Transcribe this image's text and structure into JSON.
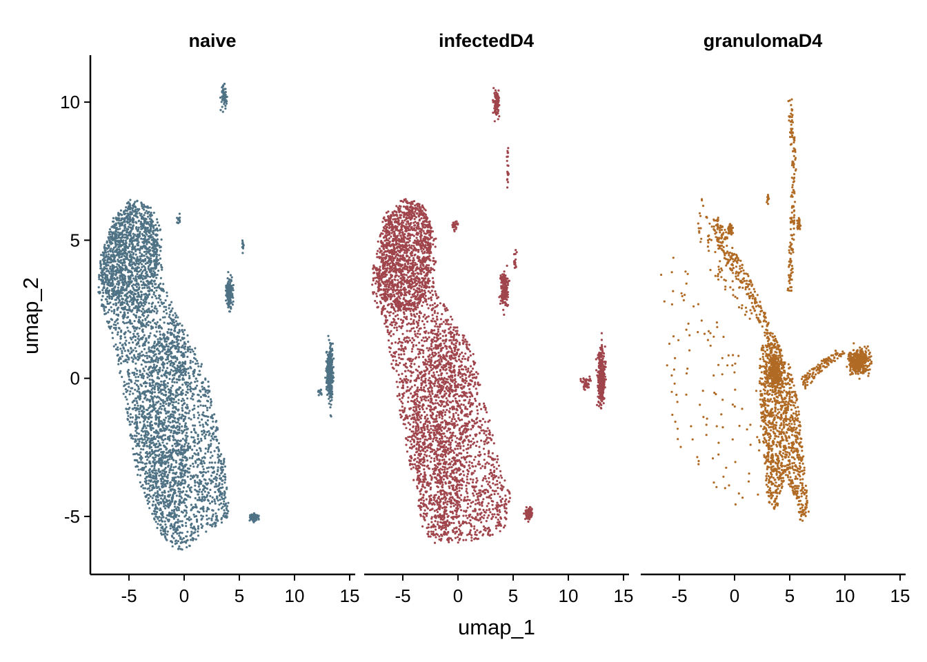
{
  "chart_data": {
    "type": "scatter",
    "xlabel": "umap_1",
    "ylabel": "umap_2",
    "xlim": [
      -8.5,
      15.5
    ],
    "ylim": [
      -7.1,
      11.7
    ],
    "x_ticks": [
      "-5",
      "0",
      "5",
      "10",
      "15"
    ],
    "y_ticks": [
      "-5",
      "0",
      "5",
      "10"
    ],
    "grid": false,
    "legend": "none",
    "panels": [
      {
        "title": "naive",
        "color": "#4f7285",
        "clusters": [
          {
            "shape": "poly",
            "poly": [
              [
                -7.7,
                4.3
              ],
              [
                -6.5,
                5.8
              ],
              [
                -4.8,
                6.5
              ],
              [
                -3.2,
                6.3
              ],
              [
                -2.1,
                5.6
              ],
              [
                -1.9,
                3.6
              ],
              [
                -0.7,
                2.3
              ],
              [
                0.8,
                1.3
              ],
              [
                2.2,
                -0.1
              ],
              [
                3.3,
                -2.3
              ],
              [
                4.1,
                -4.6
              ],
              [
                3.8,
                -5.2
              ],
              [
                1.8,
                -5.6
              ],
              [
                0.2,
                -6.2
              ],
              [
                -1.0,
                -6.2
              ],
              [
                -2.4,
                -5.5
              ],
              [
                -4.3,
                -3.5
              ],
              [
                -5.7,
                -0.2
              ],
              [
                -6.6,
                1.6
              ],
              [
                -7.8,
                3.0
              ]
            ],
            "n": 2600
          },
          {
            "shape": "poly",
            "poly": [
              [
                -7.6,
                4.0
              ],
              [
                -6.6,
                5.6
              ],
              [
                -4.8,
                6.3
              ],
              [
                -3.2,
                6.2
              ],
              [
                -2.3,
                5.3
              ],
              [
                -2.6,
                3.4
              ],
              [
                -4.0,
                2.4
              ],
              [
                -5.6,
                2.5
              ],
              [
                -7.2,
                3.0
              ]
            ],
            "n": 900
          },
          {
            "shape": "poly",
            "poly": [
              [
                -4.2,
                -0.6
              ],
              [
                -2.6,
                1.4
              ],
              [
                -0.8,
                1.9
              ],
              [
                0.4,
                0.4
              ],
              [
                0.2,
                -3.2
              ],
              [
                -0.6,
                -5.6
              ],
              [
                -2.0,
                -5.8
              ],
              [
                -3.4,
                -4.5
              ],
              [
                -4.4,
                -2.4
              ]
            ],
            "n": 700
          },
          {
            "shape": "ellipse",
            "cx": 3.3,
            "cy": -3.5,
            "rx": 0.9,
            "ry": 1.3,
            "n": 40
          },
          {
            "shape": "ellipse",
            "cx": 6.3,
            "cy": -5.05,
            "rx": 0.55,
            "ry": 0.22,
            "n": 90
          },
          {
            "shape": "ellipse",
            "cx": 3.6,
            "cy": 10.2,
            "rx": 0.35,
            "ry": 0.55,
            "n": 60
          },
          {
            "shape": "ellipse",
            "cx": 4.1,
            "cy": 3.1,
            "rx": 0.45,
            "ry": 0.85,
            "n": 160
          },
          {
            "shape": "ellipse",
            "cx": 5.3,
            "cy": 4.7,
            "rx": 0.15,
            "ry": 0.5,
            "n": 10
          },
          {
            "shape": "ellipse",
            "cx": 13.2,
            "cy": 0.2,
            "rx": 0.45,
            "ry": 1.5,
            "n": 320
          },
          {
            "shape": "ellipse",
            "cx": 12.2,
            "cy": -0.5,
            "rx": 0.4,
            "ry": 0.15,
            "n": 12
          },
          {
            "shape": "ellipse",
            "cx": -0.5,
            "cy": 5.7,
            "rx": 0.3,
            "ry": 0.4,
            "n": 12
          }
        ]
      },
      {
        "title": "infectedD4",
        "color": "#a0454c",
        "clusters": [
          {
            "shape": "poly",
            "poly": [
              [
                -7.7,
                4.4
              ],
              [
                -6.6,
                6.0
              ],
              [
                -4.8,
                6.6
              ],
              [
                -3.2,
                6.3
              ],
              [
                -2.0,
                5.4
              ],
              [
                -2.0,
                3.2
              ],
              [
                -0.6,
                2.3
              ],
              [
                1.4,
                1.0
              ],
              [
                2.6,
                -1.0
              ],
              [
                3.8,
                -3.2
              ],
              [
                4.8,
                -4.2
              ],
              [
                4.2,
                -5.6
              ],
              [
                2.0,
                -5.8
              ],
              [
                0.0,
                -6.0
              ],
              [
                -2.0,
                -6.0
              ],
              [
                -3.2,
                -5.6
              ],
              [
                -4.2,
                -3.5
              ],
              [
                -5.7,
                -0.3
              ],
              [
                -6.5,
                1.8
              ],
              [
                -7.8,
                3.0
              ]
            ],
            "n": 2600
          },
          {
            "shape": "poly",
            "poly": [
              [
                -7.5,
                4.0
              ],
              [
                -6.5,
                5.8
              ],
              [
                -4.8,
                6.5
              ],
              [
                -3.2,
                6.3
              ],
              [
                -2.3,
                5.3
              ],
              [
                -2.7,
                3.2
              ],
              [
                -4.0,
                2.4
              ],
              [
                -5.8,
                2.5
              ],
              [
                -7.2,
                3.0
              ]
            ],
            "n": 1000
          },
          {
            "shape": "poly",
            "poly": [
              [
                -4.0,
                -0.6
              ],
              [
                -2.4,
                1.4
              ],
              [
                -0.6,
                2.0
              ],
              [
                0.8,
                0.4
              ],
              [
                0.6,
                -3.2
              ],
              [
                -0.4,
                -5.6
              ],
              [
                -2.0,
                -5.8
              ],
              [
                -3.4,
                -4.4
              ],
              [
                -4.2,
                -2.4
              ]
            ],
            "n": 700
          },
          {
            "shape": "ellipse",
            "cx": 6.4,
            "cy": -4.9,
            "rx": 0.5,
            "ry": 0.35,
            "n": 80
          },
          {
            "shape": "ellipse",
            "cx": 3.5,
            "cy": 10.0,
            "rx": 0.4,
            "ry": 0.8,
            "n": 90
          },
          {
            "shape": "ellipse",
            "cx": 4.5,
            "cy": 7.5,
            "rx": 0.15,
            "ry": 1.2,
            "n": 20
          },
          {
            "shape": "ellipse",
            "cx": 4.2,
            "cy": 3.2,
            "rx": 0.5,
            "ry": 0.9,
            "n": 180
          },
          {
            "shape": "ellipse",
            "cx": 5.2,
            "cy": 4.2,
            "rx": 0.2,
            "ry": 0.8,
            "n": 15
          },
          {
            "shape": "ellipse",
            "cx": -0.3,
            "cy": 5.5,
            "rx": 0.35,
            "ry": 0.3,
            "n": 25
          },
          {
            "shape": "ellipse",
            "cx": 13.0,
            "cy": 0.1,
            "rx": 0.5,
            "ry": 1.5,
            "n": 320
          },
          {
            "shape": "ellipse",
            "cx": 11.6,
            "cy": -0.2,
            "rx": 0.8,
            "ry": 0.45,
            "n": 40
          }
        ]
      },
      {
        "title": "granulomaD4",
        "color": "#b06a24",
        "clusters": [
          {
            "shape": "poly",
            "poly": [
              [
                2.4,
                1.2
              ],
              [
                3.8,
                1.4
              ],
              [
                5.0,
                0.5
              ],
              [
                5.8,
                -1.0
              ],
              [
                6.4,
                -3.5
              ],
              [
                6.8,
                -5.0
              ],
              [
                6.0,
                -5.2
              ],
              [
                4.6,
                -3.5
              ],
              [
                3.8,
                -4.8
              ],
              [
                3.0,
                -4.5
              ],
              [
                2.5,
                -2.0
              ],
              [
                2.2,
                0.0
              ]
            ],
            "n": 1100
          },
          {
            "shape": "ellipse",
            "cx": 3.6,
            "cy": 0.2,
            "rx": 1.0,
            "ry": 1.0,
            "n": 300
          },
          {
            "shape": "ellipse",
            "cx": 11.3,
            "cy": 0.6,
            "rx": 1.5,
            "ry": 0.7,
            "n": 350
          },
          {
            "shape": "poly",
            "poly": [
              [
                6.0,
                0.0
              ],
              [
                7.5,
                0.6
              ],
              [
                9.5,
                1.1
              ],
              [
                10.0,
                0.9
              ],
              [
                8.0,
                0.3
              ],
              [
                6.4,
                -0.4
              ]
            ],
            "n": 120
          },
          {
            "shape": "poly",
            "poly": [
              [
                -2.2,
                5.8
              ],
              [
                -1.5,
                5.9
              ],
              [
                1.8,
                3.3
              ],
              [
                4.0,
                1.2
              ],
              [
                3.6,
                0.8
              ],
              [
                1.2,
                2.9
              ],
              [
                -1.4,
                4.6
              ]
            ],
            "n": 260
          },
          {
            "shape": "ellipse",
            "cx": -0.4,
            "cy": 5.4,
            "rx": 0.35,
            "ry": 0.3,
            "n": 60
          },
          {
            "shape": "poly",
            "poly": [
              [
                4.8,
                10.1
              ],
              [
                5.2,
                10.1
              ],
              [
                5.6,
                7.8
              ],
              [
                5.2,
                3.0
              ],
              [
                4.8,
                3.0
              ],
              [
                5.2,
                7.8
              ]
            ],
            "n": 150
          },
          {
            "shape": "ellipse",
            "cx": 5.8,
            "cy": 5.6,
            "rx": 0.25,
            "ry": 0.35,
            "n": 35
          },
          {
            "shape": "ellipse",
            "cx": 3.0,
            "cy": 6.5,
            "rx": 0.15,
            "ry": 0.3,
            "n": 15
          },
          {
            "shape": "poly",
            "poly": [
              [
                -3.8,
                6.5
              ],
              [
                -3.0,
                6.6
              ],
              [
                1.0,
                3.0
              ],
              [
                2.5,
                1.5
              ],
              [
                -2.8,
                4.2
              ]
            ],
            "n": 70
          },
          {
            "shape": "poly",
            "poly": [
              [
                -7.0,
                4.2
              ],
              [
                -5.0,
                4.6
              ],
              [
                3.0,
                -1.0
              ],
              [
                2.0,
                -4.8
              ],
              [
                0.0,
                -5.2
              ],
              [
                -5.5,
                -2.2
              ]
            ],
            "n": 110
          }
        ]
      }
    ]
  }
}
